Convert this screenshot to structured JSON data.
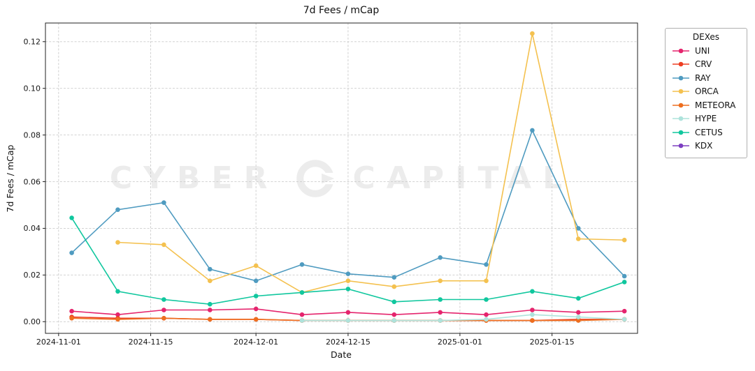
{
  "legend": {
    "title": "DEXes"
  },
  "watermark": {
    "left": "CYBER",
    "right": "CAPITAL"
  },
  "chart_data": {
    "type": "line",
    "title": "7d Fees / mCap",
    "xlabel": "Date",
    "ylabel": "7d Fees / mCap",
    "grid": true,
    "legend_position": "outside upper right",
    "x": [
      "2024-11-03",
      "2024-11-10",
      "2024-11-17",
      "2024-11-24",
      "2024-12-01",
      "2024-12-08",
      "2024-12-15",
      "2024-12-22",
      "2024-12-29",
      "2025-01-05",
      "2025-01-12",
      "2025-01-19",
      "2025-01-26"
    ],
    "xticks": [
      "2024-11-01",
      "2024-11-15",
      "2024-12-01",
      "2024-12-15",
      "2025-01-01",
      "2025-01-15"
    ],
    "xlim": [
      "2024-10-30",
      "2025-01-28"
    ],
    "yticks": [
      0.0,
      0.02,
      0.04,
      0.06,
      0.08,
      0.1,
      0.12
    ],
    "ylim": [
      -0.005,
      0.128
    ],
    "series": [
      {
        "name": "UNI",
        "color": "#e5246d",
        "values": [
          0.0045,
          0.003,
          0.005,
          0.005,
          0.0055,
          0.003,
          0.004,
          0.003,
          0.004,
          0.003,
          0.005,
          0.004,
          0.0045
        ]
      },
      {
        "name": "CRV",
        "color": "#ed3e23",
        "values": [
          0.002,
          0.0015,
          0.0015,
          0.001,
          0.001,
          0.0005,
          0.0005,
          0.0005,
          0.0005,
          0.0005,
          0.0005,
          0.001,
          0.001
        ]
      },
      {
        "name": "RAY",
        "color": "#4f9bc0",
        "values": [
          0.0295,
          0.048,
          0.051,
          0.0225,
          0.0175,
          0.0245,
          0.0205,
          0.019,
          0.0275,
          0.0245,
          0.082,
          0.04,
          0.0195
        ]
      },
      {
        "name": "ORCA",
        "color": "#f4c14f",
        "values": [
          null,
          0.034,
          0.033,
          0.0175,
          0.024,
          0.0125,
          0.0175,
          0.015,
          0.0175,
          0.0175,
          0.1235,
          0.0355,
          0.035
        ]
      },
      {
        "name": "METEORA",
        "color": "#ed6e1f",
        "values": [
          0.0015,
          0.001,
          0.0015,
          0.001,
          0.001,
          0.0005,
          0.0005,
          0.0005,
          0.0005,
          0.0005,
          0.0005,
          0.0005,
          0.001
        ]
      },
      {
        "name": "HYPE",
        "color": "#aee3dc",
        "values": [
          null,
          null,
          null,
          null,
          null,
          0.0005,
          0.0005,
          0.0005,
          0.0005,
          0.001,
          0.003,
          0.002,
          0.001
        ]
      },
      {
        "name": "CETUS",
        "color": "#10c79e",
        "values": [
          0.0445,
          0.013,
          0.0095,
          0.0075,
          0.011,
          0.0125,
          0.014,
          0.0085,
          0.0095,
          0.0095,
          0.013,
          0.01,
          0.017
        ]
      },
      {
        "name": "KDX",
        "color": "#7d3fc1",
        "values": [
          null,
          null,
          null,
          null,
          null,
          null,
          null,
          null,
          null,
          null,
          null,
          null,
          null
        ]
      }
    ]
  }
}
